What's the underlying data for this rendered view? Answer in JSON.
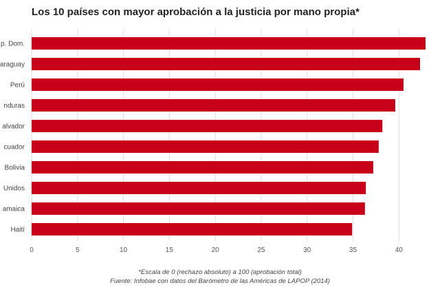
{
  "chart_data": {
    "type": "bar",
    "orientation": "horizontal",
    "title": "Los 10 países con mayor aprobación a la justicia por mano propia*",
    "categories": [
      "p. Dom.",
      "araguay",
      "Perú",
      "nduras",
      "alvador",
      "cuador",
      "Bolivia",
      "Unidos",
      "amaica",
      "Haití"
    ],
    "values": [
      42.9,
      42.3,
      40.5,
      39.6,
      38.2,
      37.8,
      37.2,
      36.4,
      36.3,
      34.9
    ],
    "x_ticks": [
      "0",
      "5",
      "10",
      "15",
      "20",
      "25",
      "30",
      "35",
      "40"
    ],
    "xlim": [
      0,
      43.5
    ],
    "grid": true,
    "legend": "none",
    "bar_color": "#c8001a",
    "grid_color": "#dddddd",
    "notes": {
      "scale": "*Escala de 0 (rechazo absoluto) a 100 (aprobación total)",
      "source": "Fuente: Infobae con datos del Barómetro de las Américas de LAPOP (2014)"
    }
  }
}
